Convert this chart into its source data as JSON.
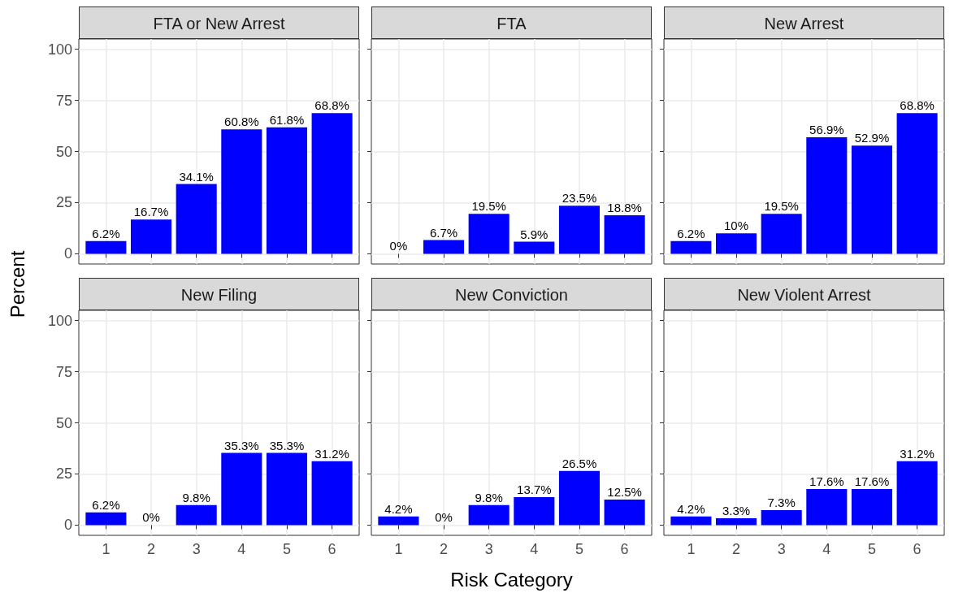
{
  "chart_data": [
    {
      "type": "bar",
      "title": "FTA or New Arrest",
      "ylabel": "Percent",
      "categories": [
        "1",
        "2",
        "3",
        "4",
        "5",
        "6"
      ],
      "values": [
        6.2,
        16.7,
        34.1,
        60.8,
        61.8,
        68.8
      ],
      "value_labels": [
        "6.2%",
        "16.7%",
        "34.1%",
        "60.8%",
        "61.8%",
        "68.8%"
      ],
      "color": "#0000ff",
      "ylim": [
        -5,
        105
      ],
      "yticks": [
        0,
        25,
        50,
        75,
        100
      ],
      "grid": true,
      "tick_labels": "y"
    },
    {
      "type": "bar",
      "title": "FTA",
      "categories": [
        "1",
        "2",
        "3",
        "4",
        "5",
        "6"
      ],
      "values": [
        0,
        6.7,
        19.5,
        5.9,
        23.5,
        18.8
      ],
      "value_labels": [
        "0%",
        "6.7%",
        "19.5%",
        "5.9%",
        "23.5%",
        "18.8%"
      ],
      "color": "#0000ff",
      "ylim": [
        -5,
        105
      ],
      "yticks": [
        0,
        25,
        50,
        75,
        100
      ],
      "grid": true,
      "tick_labels": false
    },
    {
      "type": "bar",
      "title": "New Arrest",
      "categories": [
        "1",
        "2",
        "3",
        "4",
        "5",
        "6"
      ],
      "values": [
        6.2,
        10,
        19.5,
        56.9,
        52.9,
        68.8
      ],
      "value_labels": [
        "6.2%",
        "10%",
        "19.5%",
        "56.9%",
        "52.9%",
        "68.8%"
      ],
      "color": "#0000ff",
      "ylim": [
        -5,
        105
      ],
      "yticks": [
        0,
        25,
        50,
        75,
        100
      ],
      "grid": true,
      "tick_labels": false
    },
    {
      "type": "bar",
      "title": "New Filing",
      "categories": [
        "1",
        "2",
        "3",
        "4",
        "5",
        "6"
      ],
      "values": [
        6.2,
        0,
        9.8,
        35.3,
        35.3,
        31.2
      ],
      "value_labels": [
        "6.2%",
        "0%",
        "9.8%",
        "35.3%",
        "35.3%",
        "31.2%"
      ],
      "color": "#0000ff",
      "ylim": [
        -5,
        105
      ],
      "yticks": [
        0,
        25,
        50,
        75,
        100
      ],
      "grid": true
    },
    {
      "type": "bar",
      "title": "New Conviction",
      "xlabel": "Risk Category",
      "categories": [
        "1",
        "2",
        "3",
        "4",
        "5",
        "6"
      ],
      "values": [
        4.2,
        0,
        9.8,
        13.7,
        26.5,
        12.5
      ],
      "value_labels": [
        "4.2%",
        "0%",
        "9.8%",
        "13.7%",
        "26.5%",
        "12.5%"
      ],
      "color": "#0000ff",
      "ylim": [
        -5,
        105
      ],
      "yticks": [
        0,
        25,
        50,
        75,
        100
      ],
      "grid": true,
      "tick_labels": "x"
    },
    {
      "type": "bar",
      "title": "New Violent Arrest",
      "categories": [
        "1",
        "2",
        "3",
        "4",
        "5",
        "6"
      ],
      "values": [
        4.2,
        3.3,
        7.3,
        17.6,
        17.6,
        31.2
      ],
      "value_labels": [
        "4.2%",
        "3.3%",
        "7.3%",
        "17.6%",
        "17.6%",
        "31.2%"
      ],
      "color": "#0000ff",
      "ylim": [
        -5,
        105
      ],
      "yticks": [
        0,
        25,
        50,
        75,
        100
      ],
      "grid": true,
      "tick_labels": "x"
    }
  ]
}
